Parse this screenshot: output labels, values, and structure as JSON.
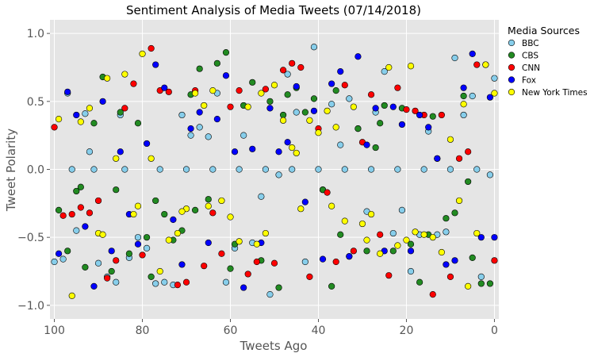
{
  "chart_data": {
    "type": "scatter",
    "title": "Sentiment Analysis of Media Tweets (07/14/2018)",
    "xlabel": "Tweets Ago",
    "ylabel": "Tweet Polarity",
    "xlim": [
      101,
      -1
    ],
    "ylim": [
      -1.1,
      1.1
    ],
    "x_ticks": [
      100,
      80,
      60,
      40,
      20,
      0
    ],
    "x_tick_labels": [
      "100",
      "80",
      "60",
      "40",
      "20",
      "0"
    ],
    "y_ticks": [
      1.0,
      0.5,
      0.0,
      -0.5,
      -1.0
    ],
    "y_tick_labels": [
      "1.0",
      "0.5",
      "0.0",
      "−0.5",
      "−1.0"
    ],
    "grid": true,
    "legend": {
      "title": "Media Sources",
      "placement": "outside-right-top"
    },
    "series": [
      {
        "name": "BBC",
        "color": "#87ceeb",
        "x": [
          100,
          98,
          97,
          95,
          93,
          92,
          90,
          88,
          86,
          85,
          83,
          81,
          79,
          77,
          75,
          73,
          71,
          69,
          67,
          65,
          63,
          61,
          59,
          57,
          55,
          53,
          51,
          49,
          47,
          45,
          43,
          41,
          39,
          37,
          35,
          33,
          31,
          29,
          27,
          25,
          23,
          21,
          19,
          17,
          15,
          13,
          11,
          9,
          7,
          5,
          3,
          1,
          0,
          96,
          91,
          84,
          76,
          70,
          64,
          58,
          52,
          46,
          40,
          34,
          28,
          22,
          16,
          10,
          4
        ],
        "y": [
          -0.68,
          -0.66,
          0.56,
          -0.45,
          0.41,
          0.13,
          -0.69,
          -0.79,
          -0.83,
          0.4,
          -0.65,
          -0.5,
          -0.58,
          -0.84,
          -0.83,
          -0.85,
          0.4,
          0.25,
          0.31,
          0.24,
          0.56,
          -0.83,
          -0.58,
          0.25,
          -0.54,
          -0.2,
          -0.92,
          -0.04,
          0.7,
          0.42,
          -0.68,
          0.9,
          -0.15,
          0.48,
          0.18,
          0.52,
          0.3,
          -0.31,
          0.42,
          0.72,
          -0.47,
          -0.3,
          -0.75,
          -0.48,
          0.28,
          -0.48,
          -0.46,
          0.82,
          0.4,
          0.54,
          -0.79,
          -0.04,
          0.67,
          0.0,
          0.0,
          0.0,
          0.0,
          0.0,
          0.0,
          0.0,
          0.0,
          0.0,
          0.0,
          0.0,
          0.0,
          0.0,
          0.0,
          0.0,
          0.0
        ]
      },
      {
        "name": "CBS",
        "color": "#228b22",
        "x": [
          99,
          97,
          95,
          93,
          91,
          89,
          87,
          85,
          83,
          81,
          79,
          77,
          75,
          73,
          71,
          69,
          67,
          65,
          63,
          61,
          59,
          57,
          55,
          53,
          51,
          49,
          47,
          45,
          43,
          41,
          39,
          37,
          35,
          33,
          31,
          29,
          27,
          25,
          23,
          21,
          19,
          17,
          15,
          13,
          11,
          9,
          7,
          5,
          3,
          1,
          94,
          86,
          78,
          68,
          60,
          48,
          36,
          26,
          14,
          6
        ],
        "y": [
          -0.3,
          -0.6,
          -0.16,
          -0.72,
          0.34,
          0.68,
          -0.75,
          0.42,
          -0.62,
          0.34,
          -0.5,
          -0.23,
          -0.33,
          -0.52,
          -0.45,
          0.55,
          0.74,
          -0.22,
          0.78,
          0.86,
          -0.55,
          0.47,
          0.64,
          -0.67,
          0.5,
          -0.87,
          0.55,
          0.6,
          0.42,
          0.52,
          -0.15,
          -0.86,
          -0.48,
          -0.64,
          0.3,
          -0.6,
          0.16,
          0.47,
          -0.6,
          0.45,
          -0.55,
          -0.83,
          -0.48,
          0.08,
          -0.36,
          -0.32,
          0.54,
          -0.65,
          -0.84,
          -0.84,
          -0.13,
          -0.15,
          -0.79,
          -0.3,
          -0.73,
          0.4,
          0.58,
          0.34,
          0.39,
          -0.09
        ]
      },
      {
        "name": "CNN",
        "color": "#ff0000",
        "x": [
          100,
          98,
          96,
          94,
          92,
          90,
          88,
          86,
          84,
          82,
          80,
          78,
          76,
          74,
          72,
          70,
          68,
          66,
          64,
          62,
          60,
          58,
          56,
          54,
          52,
          50,
          48,
          46,
          44,
          42,
          40,
          38,
          36,
          34,
          32,
          30,
          28,
          26,
          24,
          22,
          20,
          18,
          16,
          14,
          12,
          10,
          8,
          6,
          4,
          2,
          0
        ],
        "y": [
          0.31,
          -0.34,
          -0.33,
          -0.28,
          -0.32,
          -0.23,
          -0.8,
          -0.67,
          0.45,
          0.63,
          -0.63,
          0.89,
          0.58,
          0.57,
          -0.85,
          -0.83,
          0.58,
          -0.71,
          -0.32,
          -0.62,
          0.46,
          0.58,
          -0.77,
          -0.68,
          0.59,
          -0.69,
          0.73,
          0.78,
          0.75,
          -0.79,
          0.3,
          -0.17,
          -0.68,
          0.62,
          -0.6,
          0.2,
          0.55,
          -0.48,
          -0.78,
          0.6,
          0.44,
          0.43,
          0.4,
          -0.92,
          0.4,
          -0.79,
          0.08,
          0.13,
          0.77,
          0.77,
          -0.67
        ]
      },
      {
        "name": "Fox",
        "color": "#0000ff",
        "x": [
          99,
          97,
          95,
          93,
          91,
          89,
          87,
          85,
          83,
          81,
          79,
          77,
          75,
          73,
          71,
          69,
          67,
          65,
          63,
          61,
          59,
          57,
          55,
          53,
          51,
          49,
          47,
          45,
          43,
          41,
          39,
          37,
          35,
          33,
          31,
          29,
          27,
          25,
          23,
          21,
          19,
          17,
          15,
          13,
          11,
          9,
          7,
          5,
          3,
          1,
          0
        ],
        "y": [
          -0.62,
          0.57,
          0.4,
          -0.42,
          -0.86,
          0.5,
          -0.6,
          0.13,
          -0.33,
          -0.55,
          0.19,
          0.77,
          0.6,
          -0.37,
          -0.7,
          0.3,
          0.42,
          -0.54,
          0.37,
          0.69,
          0.13,
          -0.87,
          0.15,
          -0.54,
          0.45,
          0.13,
          0.2,
          0.61,
          -0.24,
          0.43,
          -0.66,
          0.63,
          0.72,
          -0.64,
          0.83,
          0.18,
          0.45,
          -0.6,
          0.46,
          0.33,
          -0.6,
          0.4,
          0.31,
          0.08,
          -0.7,
          -0.67,
          0.6,
          0.85,
          -0.5,
          0.53,
          -0.5
        ]
      },
      {
        "name": "New York Times",
        "color": "#ffff00",
        "x": [
          99,
          96,
          94,
          92,
          90,
          88,
          86,
          84,
          82,
          80,
          78,
          76,
          74,
          72,
          70,
          68,
          66,
          64,
          62,
          60,
          58,
          56,
          54,
          52,
          50,
          48,
          46,
          44,
          42,
          40,
          38,
          36,
          34,
          32,
          30,
          28,
          26,
          24,
          22,
          20,
          18,
          16,
          14,
          12,
          10,
          8,
          6,
          4,
          2,
          0,
          89,
          81,
          71,
          65,
          53,
          45,
          37,
          29,
          19,
          7
        ],
        "y": [
          0.37,
          -0.93,
          0.35,
          0.45,
          -0.47,
          0.67,
          0.08,
          0.7,
          -0.33,
          0.85,
          0.08,
          -0.75,
          -0.52,
          -0.47,
          -0.29,
          0.56,
          0.47,
          0.58,
          -0.23,
          -0.35,
          -0.53,
          0.46,
          -0.55,
          -0.47,
          0.62,
          0.36,
          0.16,
          -0.29,
          0.36,
          0.27,
          0.43,
          0.31,
          -0.38,
          0.46,
          -0.4,
          -0.33,
          -0.62,
          0.75,
          -0.56,
          -0.52,
          -0.46,
          -0.48,
          -0.5,
          -0.61,
          0.22,
          -0.23,
          -0.86,
          -0.47,
          0.77,
          0.56,
          -0.48,
          -0.27,
          -0.31,
          -0.27,
          0.56,
          0.12,
          -0.27,
          -0.52,
          0.76,
          0.48
        ]
      }
    ]
  }
}
